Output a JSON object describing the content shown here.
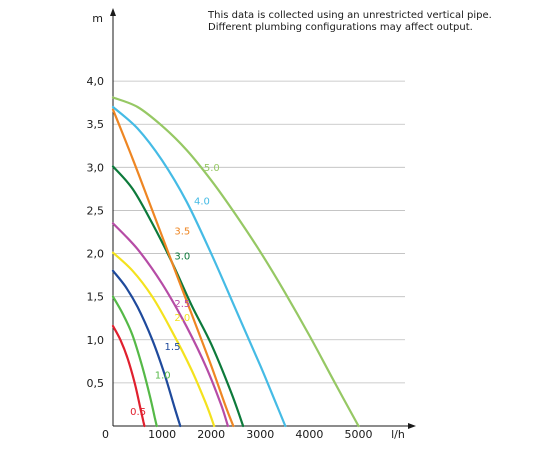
{
  "annotation": {
    "line1": "This data is collected using an unrestricted vertical pipe.",
    "line2": "Different plumbing configurations may affect output."
  },
  "chart_data": {
    "type": "line",
    "title": "",
    "xlabel": "l/h",
    "ylabel": "m",
    "xlim": [
      0,
      6000
    ],
    "ylim": [
      0,
      4.5
    ],
    "xticks": [
      0,
      1000,
      2000,
      3000,
      4000,
      5000
    ],
    "xtick_labels": [
      "0",
      "1000",
      "2000",
      "3000",
      "4000",
      "5000"
    ],
    "yticks": [
      0.5,
      1.0,
      1.5,
      2.0,
      2.5,
      3.0,
      3.5,
      4.0
    ],
    "ytick_labels": [
      "0,5",
      "1,0",
      "1,5",
      "2,0",
      "2,5",
      "3,0",
      "3,5",
      "4,0"
    ],
    "grid": "horizontal",
    "legend": "inline labels on curves",
    "series": [
      {
        "name": "0.5",
        "color": "#e0202e",
        "x": [
          0,
          150,
          300,
          450,
          560,
          620,
          640
        ],
        "y": [
          1.16,
          1.0,
          0.78,
          0.48,
          0.2,
          0.05,
          0
        ]
      },
      {
        "name": "1.0",
        "color": "#55b947",
        "x": [
          0,
          200,
          400,
          600,
          750,
          850,
          890
        ],
        "y": [
          1.5,
          1.3,
          1.05,
          0.68,
          0.35,
          0.1,
          0
        ]
      },
      {
        "name": "1.5",
        "color": "#1f4a9c",
        "x": [
          0,
          250,
          500,
          800,
          1050,
          1250,
          1370
        ],
        "y": [
          1.8,
          1.62,
          1.38,
          1.0,
          0.6,
          0.22,
          0
        ]
      },
      {
        "name": "2.0",
        "color": "#f4e21e",
        "x": [
          0,
          400,
          800,
          1200,
          1600,
          1900,
          2060
        ],
        "y": [
          2.01,
          1.8,
          1.5,
          1.1,
          0.65,
          0.25,
          0
        ]
      },
      {
        "name": "2.5",
        "color": "#b64ca6",
        "x": [
          0,
          500,
          1000,
          1500,
          1900,
          2200,
          2340
        ],
        "y": [
          2.35,
          2.05,
          1.65,
          1.15,
          0.68,
          0.25,
          0
        ]
      },
      {
        "name": "3.0",
        "color": "#0d7a3b",
        "x": [
          0,
          400,
          800,
          1200,
          1600,
          2000,
          2400,
          2650
        ],
        "y": [
          3.01,
          2.75,
          2.35,
          1.9,
          1.4,
          0.95,
          0.4,
          0
        ]
      },
      {
        "name": "3.5",
        "color": "#ee8623",
        "x": [
          0,
          400,
          800,
          1200,
          1600,
          2000,
          2300,
          2450
        ],
        "y": [
          3.67,
          3.1,
          2.5,
          1.9,
          1.3,
          0.7,
          0.22,
          0
        ]
      },
      {
        "name": "4.0",
        "color": "#45bbe5",
        "x": [
          0,
          500,
          1000,
          1500,
          2000,
          2500,
          3000,
          3350,
          3510
        ],
        "y": [
          3.7,
          3.45,
          3.08,
          2.6,
          2.0,
          1.35,
          0.7,
          0.22,
          0
        ]
      },
      {
        "name": "5.0",
        "color": "#96c864",
        "x": [
          0,
          500,
          1000,
          1500,
          2000,
          2500,
          3000,
          3500,
          4000,
          4500,
          5000
        ],
        "y": [
          3.81,
          3.7,
          3.48,
          3.2,
          2.85,
          2.45,
          2.02,
          1.55,
          1.05,
          0.52,
          0
        ]
      }
    ],
    "curve_labels": [
      {
        "text": "0.5",
        "x": 350,
        "y": 0.13,
        "color": "#e0202e"
      },
      {
        "text": "1.0",
        "x": 850,
        "y": 0.55,
        "color": "#55b947"
      },
      {
        "text": "1.5",
        "x": 1050,
        "y": 0.88,
        "color": "#1f4a9c"
      },
      {
        "text": "2.0",
        "x": 1250,
        "y": 1.22,
        "color": "#f4e21e"
      },
      {
        "text": "2.5",
        "x": 1250,
        "y": 1.38,
        "color": "#b64ca6"
      },
      {
        "text": "3.0",
        "x": 1250,
        "y": 1.93,
        "color": "#0d7a3b"
      },
      {
        "text": "3.5",
        "x": 1250,
        "y": 2.22,
        "color": "#ee8623"
      },
      {
        "text": "4.0",
        "x": 1650,
        "y": 2.57,
        "color": "#45bbe5"
      },
      {
        "text": "5.0",
        "x": 1850,
        "y": 2.96,
        "color": "#96c864"
      }
    ]
  }
}
